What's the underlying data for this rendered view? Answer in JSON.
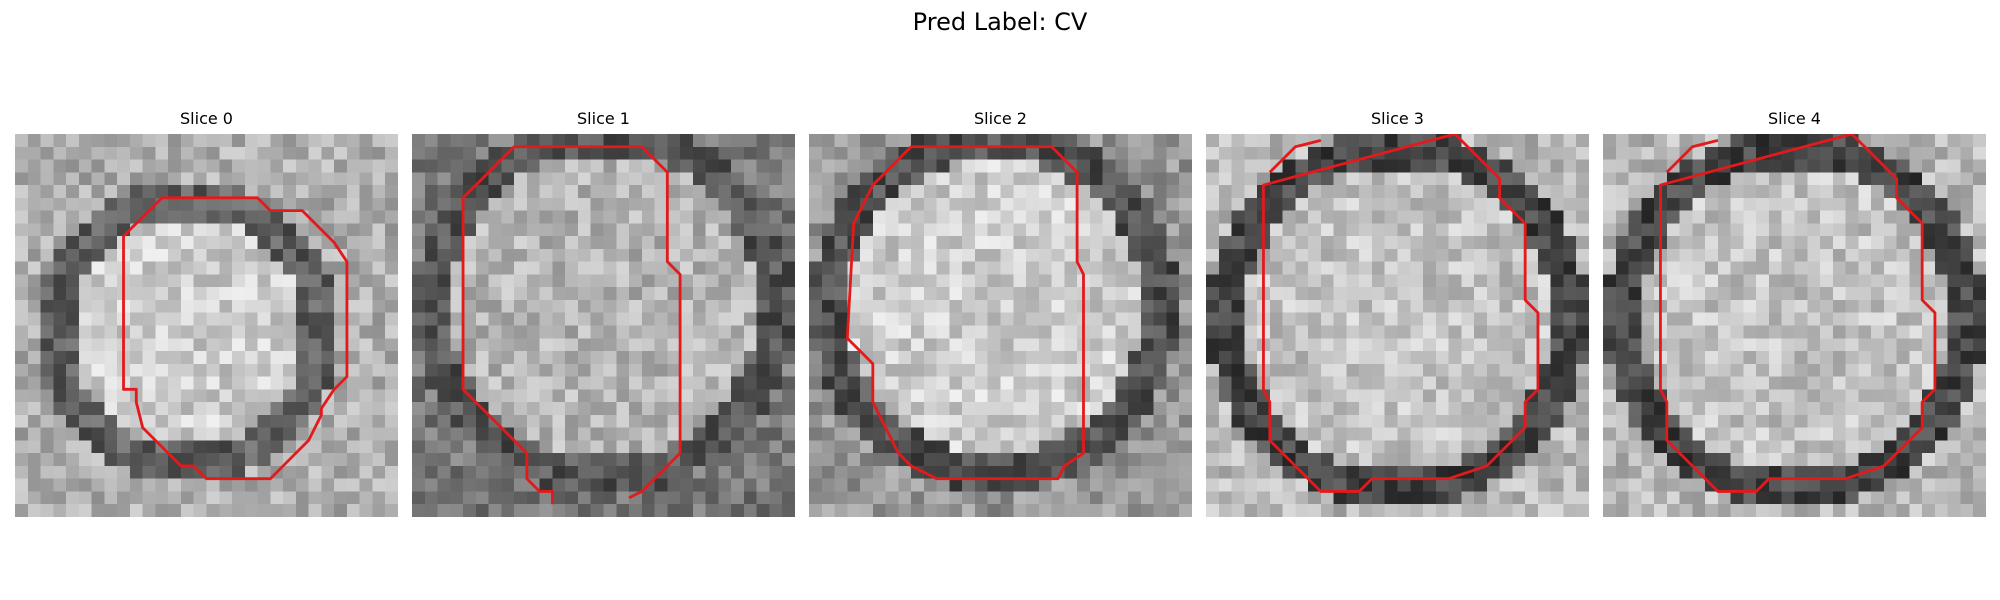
{
  "figure": {
    "title": "Pred Label: CV"
  },
  "contour_color": "#e31a1c",
  "slices": [
    {
      "title": "Slice 0"
    },
    {
      "title": "Slice 1"
    },
    {
      "title": "Slice 2"
    },
    {
      "title": "Slice 3"
    },
    {
      "title": "Slice 4"
    }
  ]
}
